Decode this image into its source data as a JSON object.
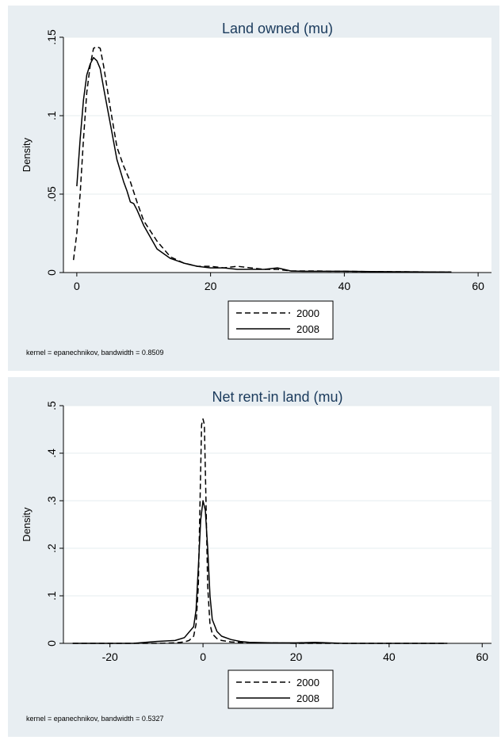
{
  "chart_data": [
    {
      "type": "line",
      "title": "Land owned (mu)",
      "xlabel": "",
      "ylabel": "Density",
      "xlim": [
        -2,
        62
      ],
      "ylim": [
        0,
        0.15
      ],
      "xticks": [
        "0",
        "20",
        "40",
        "60"
      ],
      "xtick_values": [
        0,
        20,
        40,
        60
      ],
      "yticks": [
        "0",
        ".05",
        ".1",
        ".15"
      ],
      "ytick_values": [
        0,
        0.05,
        0.1,
        0.15
      ],
      "grid": true,
      "legend_position": "bottom",
      "note": "kernel = epanechnikov, bandwidth = 0.8509",
      "series": [
        {
          "name": "2000",
          "style": "dashed",
          "x": [
            -0.5,
            0,
            0.5,
            1,
            1.5,
            2,
            2.5,
            3,
            3.5,
            4,
            5,
            6,
            7,
            8,
            9,
            10,
            12,
            14,
            16,
            18,
            20,
            22,
            24,
            26,
            28,
            30,
            32,
            34,
            36,
            38,
            40,
            44,
            48,
            52,
            56
          ],
          "y": [
            0.008,
            0.025,
            0.05,
            0.085,
            0.115,
            0.132,
            0.143,
            0.144,
            0.143,
            0.132,
            0.105,
            0.08,
            0.068,
            0.058,
            0.045,
            0.033,
            0.02,
            0.01,
            0.006,
            0.004,
            0.004,
            0.003,
            0.004,
            0.003,
            0.002,
            0.002,
            0.001,
            0.001,
            0.001,
            0.0008,
            0.0008,
            0.0006,
            0.0005,
            0.0004,
            0.0003
          ]
        },
        {
          "name": "2008",
          "style": "solid",
          "x": [
            0,
            0.5,
            1,
            1.5,
            2,
            2.5,
            3,
            3.5,
            4,
            5,
            6,
            7,
            7.5,
            8,
            8.5,
            9,
            10,
            12,
            14,
            16,
            18,
            20,
            22,
            24,
            26,
            28,
            30,
            32,
            34,
            36,
            38,
            40,
            44,
            48,
            52,
            56
          ],
          "y": [
            0.055,
            0.085,
            0.11,
            0.126,
            0.133,
            0.137,
            0.135,
            0.13,
            0.118,
            0.095,
            0.072,
            0.058,
            0.052,
            0.045,
            0.044,
            0.04,
            0.03,
            0.015,
            0.009,
            0.006,
            0.004,
            0.003,
            0.003,
            0.002,
            0.002,
            0.002,
            0.003,
            0.001,
            0.0008,
            0.0008,
            0.0008,
            0.0008,
            0.0006,
            0.0005,
            0.0004,
            0.0003
          ]
        }
      ]
    },
    {
      "type": "line",
      "title": "Net rent-in land (mu)",
      "xlabel": "",
      "ylabel": "Density",
      "xlim": [
        -30,
        62
      ],
      "ylim": [
        0,
        0.5
      ],
      "xticks": [
        "-20",
        "0",
        "20",
        "40",
        "60"
      ],
      "xtick_values": [
        -20,
        0,
        20,
        40,
        60
      ],
      "yticks": [
        "0",
        ".1",
        ".2",
        ".3",
        ".4",
        ".5"
      ],
      "ytick_values": [
        0,
        0.1,
        0.2,
        0.3,
        0.4,
        0.5
      ],
      "grid": true,
      "legend_position": "bottom",
      "note": "kernel = epanechnikov, bandwidth = 0.5327",
      "series": [
        {
          "name": "2000",
          "style": "dashed",
          "x": [
            -28,
            -10,
            -6,
            -4,
            -3,
            -2,
            -1.5,
            -1,
            -0.6,
            -0.3,
            0,
            0.3,
            0.6,
            1,
            1.5,
            2,
            3,
            4,
            6,
            8,
            10,
            15,
            20,
            30,
            40,
            52.5
          ],
          "y": [
            0,
            0,
            0.001,
            0.003,
            0.006,
            0.015,
            0.04,
            0.12,
            0.32,
            0.46,
            0.472,
            0.46,
            0.32,
            0.12,
            0.04,
            0.02,
            0.01,
            0.006,
            0.003,
            0.002,
            0.001,
            0.001,
            0,
            0,
            0,
            0
          ]
        },
        {
          "name": "2008",
          "style": "solid",
          "x": [
            -28,
            -15,
            -10,
            -8,
            -6,
            -4,
            -2,
            -1.5,
            -1,
            -0.5,
            0,
            0.5,
            1,
            1.5,
            2,
            3,
            4,
            6,
            8,
            10,
            15,
            20,
            24,
            30,
            40,
            52.5
          ],
          "y": [
            0,
            0,
            0.004,
            0.005,
            0.006,
            0.012,
            0.035,
            0.07,
            0.16,
            0.26,
            0.3,
            0.28,
            0.2,
            0.1,
            0.05,
            0.025,
            0.015,
            0.008,
            0.004,
            0.002,
            0.001,
            0.001,
            0.002,
            0,
            0,
            0
          ]
        }
      ]
    }
  ]
}
